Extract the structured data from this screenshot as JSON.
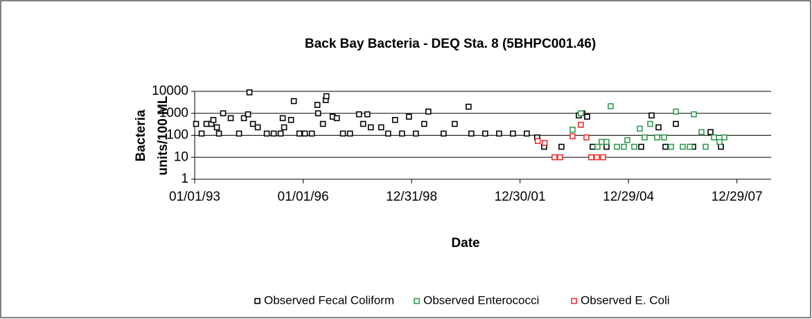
{
  "chart_data": {
    "type": "scatter",
    "title": "Back Bay Bacteria - DEQ Sta. 8 (5BHPC001.46)",
    "y_label_lines": [
      "Bacteria",
      "units/100 ML"
    ],
    "x_label": "Date",
    "log_y": true,
    "grid": true,
    "legend": "bottom",
    "xlim": [
      "1993-01-01",
      "2008-12-08"
    ],
    "xticks": [
      {
        "value": "1993-01-01",
        "label": "01/01/93"
      },
      {
        "value": "1996-01-01",
        "label": "01/01/96"
      },
      {
        "value": "1998-12-31",
        "label": "12/31/98"
      },
      {
        "value": "2001-12-30",
        "label": "12/30/01"
      },
      {
        "value": "2004-12-29",
        "label": "12/29/04"
      },
      {
        "value": "2007-12-29",
        "label": "12/29/07"
      }
    ],
    "ylim": [
      1,
      10000
    ],
    "yticks": [
      1,
      10,
      100,
      1000,
      10000
    ],
    "series": [
      {
        "name": "Observed Fecal Coliform",
        "color": "#000000",
        "x": [
          "1993-01-15",
          "1993-03-12",
          "1993-04-30",
          "1993-06-18",
          "1993-07-09",
          "1993-08-13",
          "1993-09-03",
          "1993-10-15",
          "1993-12-31",
          "1994-03-25",
          "1994-05-13",
          "1994-06-24",
          "1994-07-08",
          "1994-08-12",
          "1994-09-30",
          "1994-12-30",
          "1995-03-10",
          "1995-05-19",
          "1995-06-09",
          "1995-06-23",
          "1995-09-01",
          "1995-09-29",
          "1995-11-24",
          "1996-01-19",
          "1996-03-29",
          "1996-05-24",
          "1996-05-31",
          "1996-07-19",
          "1996-08-16",
          "1996-08-23",
          "1996-10-25",
          "1996-12-06",
          "1997-02-06",
          "1997-04-18",
          "1997-07-18",
          "1997-08-29",
          "1997-10-10",
          "1997-11-14",
          "1998-02-27",
          "1998-05-08",
          "1998-07-17",
          "1998-09-25",
          "1998-12-04",
          "1999-02-12",
          "1999-05-07",
          "1999-06-18",
          "1999-11-19",
          "2000-03-10",
          "2000-07-28",
          "2000-08-25",
          "2001-01-12",
          "2001-06-01",
          "2001-10-19",
          "2002-03-08",
          "2002-06-21",
          "2002-08-30",
          "2003-02-21",
          "2003-08-15",
          "2003-09-19",
          "2003-11-07",
          "2004-01-02",
          "2004-05-21",
          "2005-05-06",
          "2005-08-19",
          "2005-10-28",
          "2006-01-06",
          "2006-04-21",
          "2006-10-13",
          "2007-04-06",
          "2007-07-20"
        ],
        "values": [
          330,
          120,
          330,
          330,
          500,
          230,
          120,
          1000,
          600,
          120,
          600,
          900,
          9000,
          330,
          230,
          120,
          120,
          120,
          600,
          230,
          500,
          3600,
          120,
          120,
          120,
          2400,
          1000,
          330,
          4000,
          6000,
          700,
          600,
          120,
          120,
          900,
          330,
          900,
          230,
          230,
          120,
          500,
          120,
          700,
          120,
          330,
          1200,
          120,
          330,
          2000,
          120,
          120,
          120,
          120,
          120,
          80,
          30,
          30,
          800,
          1000,
          700,
          30,
          30,
          30,
          800,
          230,
          30,
          330,
          30,
          140,
          30
        ]
      },
      {
        "name": "Observed Enterococci",
        "color": "#2f9a4b",
        "x": [
          "2003-06-13",
          "2003-09-05",
          "2004-02-20",
          "2004-04-02",
          "2004-05-21",
          "2004-07-02",
          "2004-09-03",
          "2004-11-12",
          "2004-12-17",
          "2005-02-25",
          "2005-04-22",
          "2005-06-10",
          "2005-08-05",
          "2005-10-14",
          "2005-12-23",
          "2006-03-03",
          "2006-04-21",
          "2006-06-30",
          "2006-09-08",
          "2006-10-20",
          "2007-01-05",
          "2007-02-16",
          "2007-05-11",
          "2007-07-06",
          "2007-08-24"
        ],
        "values": [
          180,
          1000,
          30,
          50,
          50,
          2100,
          30,
          30,
          60,
          30,
          200,
          80,
          330,
          80,
          80,
          30,
          1200,
          30,
          30,
          900,
          140,
          30,
          80,
          50,
          80
        ]
      },
      {
        "name": "Observed E. Coli",
        "color": "#e8302f",
        "x": [
          "2002-06-27",
          "2002-09-05",
          "2002-12-13",
          "2003-02-07",
          "2003-06-13",
          "2003-09-05",
          "2003-10-31",
          "2003-12-19",
          "2004-02-13",
          "2004-04-16"
        ],
        "values": [
          55,
          45,
          10,
          10,
          90,
          300,
          80,
          10,
          10,
          10
        ]
      }
    ]
  }
}
